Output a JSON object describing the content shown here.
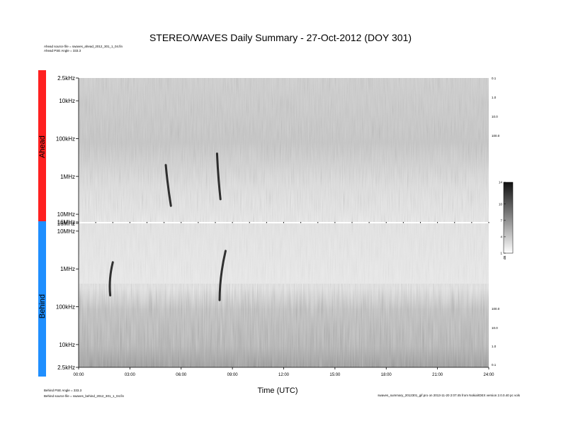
{
  "header": {
    "title": "STEREO/WAVES Daily Summary - 27-Oct-2012 (DOY 301)",
    "ahead_source": "Ahead source file = swaves_ahead_2012_301_1_04.fin",
    "ahead_pse": "Ahead PSE Angle = 333.3"
  },
  "footer": {
    "behind_pse": "Behind PSE Angle = 333.3",
    "behind_source": "Behind source file = swaves_behind_2012_301_1_04.fin",
    "credit": "swaves_summary_2012301_gif.pro on 2013-11-20 2:07:45 from Nokia/IDEX version 2.0.0.40 pc vols"
  },
  "colors": {
    "ahead_bar": "#ff2020",
    "behind_bar": "#1f8fff",
    "bar_text": "#ffffff",
    "axis": "#000000"
  },
  "chart_data": {
    "type": "heatmap",
    "xlabel": "Time (UTC)",
    "x_ticks": [
      "00:00",
      "03:00",
      "06:00",
      "09:00",
      "12:00",
      "15:00",
      "18:00",
      "21:00",
      "24:00"
    ],
    "x_range_hours": [
      0,
      24
    ],
    "panels": [
      {
        "name": "Ahead",
        "frequency_scale": "log",
        "y_ticks": [
          "2.5kHz",
          "10kHz",
          "100kHz",
          "1MHz",
          "10MHz",
          "16MHz"
        ],
        "y_tick_hz": [
          2500,
          10000,
          100000,
          1000000,
          10000000,
          16000000
        ],
        "right_scale": [
          "0.1",
          "1.0",
          "10.0",
          "100.0"
        ]
      },
      {
        "name": "Behind",
        "frequency_scale": "log",
        "y_ticks": [
          "16MHz",
          "10MHz",
          "1MHz",
          "100kHz",
          "10kHz",
          "2.5kHz"
        ],
        "y_tick_hz": [
          16000000,
          10000000,
          1000000,
          100000,
          10000,
          2500
        ],
        "right_scale": [
          "100.0",
          "10.0",
          "1.0",
          "0.1"
        ]
      }
    ],
    "colorbar": {
      "unit": "dB",
      "ticks": [
        "1",
        "4",
        "7",
        "10",
        "14"
      ],
      "range": [
        1,
        14
      ]
    },
    "bursts": [
      {
        "panel": "Ahead",
        "start_hour": 5.1,
        "end_hour": 5.4,
        "f_high_mhz": 6,
        "f_low_mhz": 0.5
      },
      {
        "panel": "Ahead",
        "start_hour": 8.1,
        "end_hour": 8.3,
        "f_high_mhz": 4,
        "f_low_mhz": 0.25
      },
      {
        "panel": "Behind",
        "start_hour": 8.0,
        "end_hour": 8.6,
        "f_high_mhz": 3,
        "f_low_mhz": 0.15
      },
      {
        "panel": "Behind",
        "start_hour": 1.6,
        "end_hour": 2.0,
        "f_high_mhz": 1.5,
        "f_low_mhz": 0.2
      }
    ]
  }
}
